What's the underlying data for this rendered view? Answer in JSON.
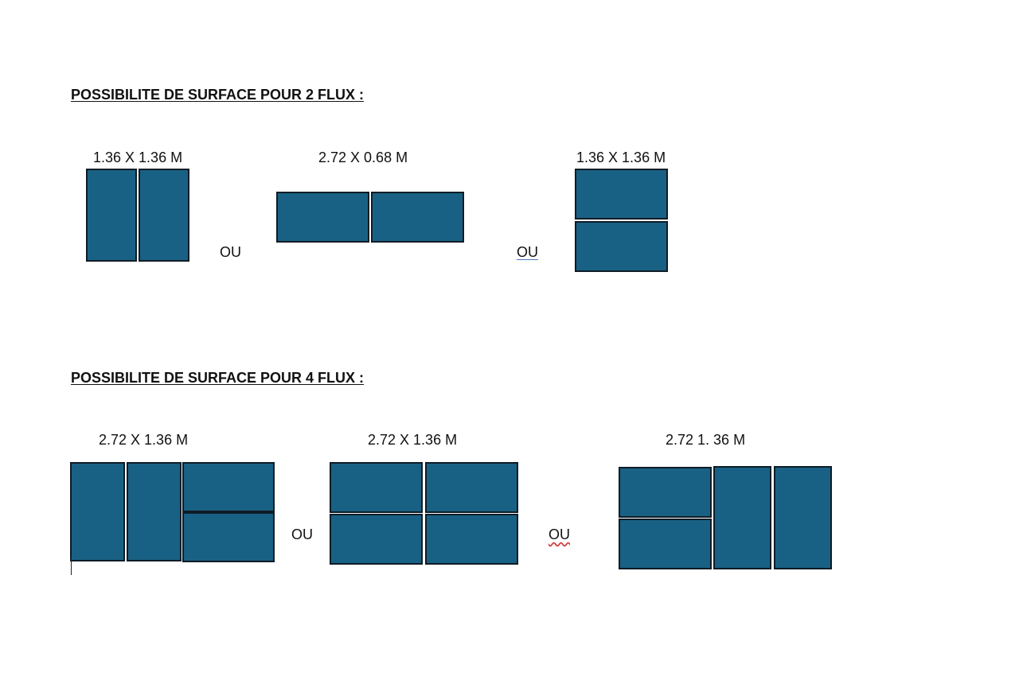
{
  "sections": [
    {
      "heading": "POSSIBILITE DE SURFACE POUR 2 FLUX :",
      "options": [
        {
          "label": "1.36 X 1.36 M",
          "layout": "two-vertical",
          "pieces": 2
        },
        {
          "label": "2.72 X 0.68 M",
          "layout": "two-horizontal-side-by-side",
          "pieces": 2
        },
        {
          "label": "1.36 X 1.36 M",
          "layout": "two-stacked",
          "pieces": 2
        }
      ],
      "separators": [
        "OU",
        "OU"
      ]
    },
    {
      "heading": "POSSIBILITE DE SURFACE POUR 4 FLUX :",
      "options": [
        {
          "label": "2.72 X 1.36 M",
          "layout": "two-vertical-plus-two-stacked",
          "pieces": 4
        },
        {
          "label": "2.72 X 1.36 M",
          "layout": "grid-2x2",
          "pieces": 4
        },
        {
          "label": "2.72 1. 36 M",
          "layout": "two-stacked-plus-two-vertical",
          "pieces": 4
        }
      ],
      "separators": [
        "OU",
        "OU"
      ]
    }
  ],
  "colors": {
    "block_fill": "#196184",
    "block_border": "#0e1c26",
    "text": "#111111"
  }
}
